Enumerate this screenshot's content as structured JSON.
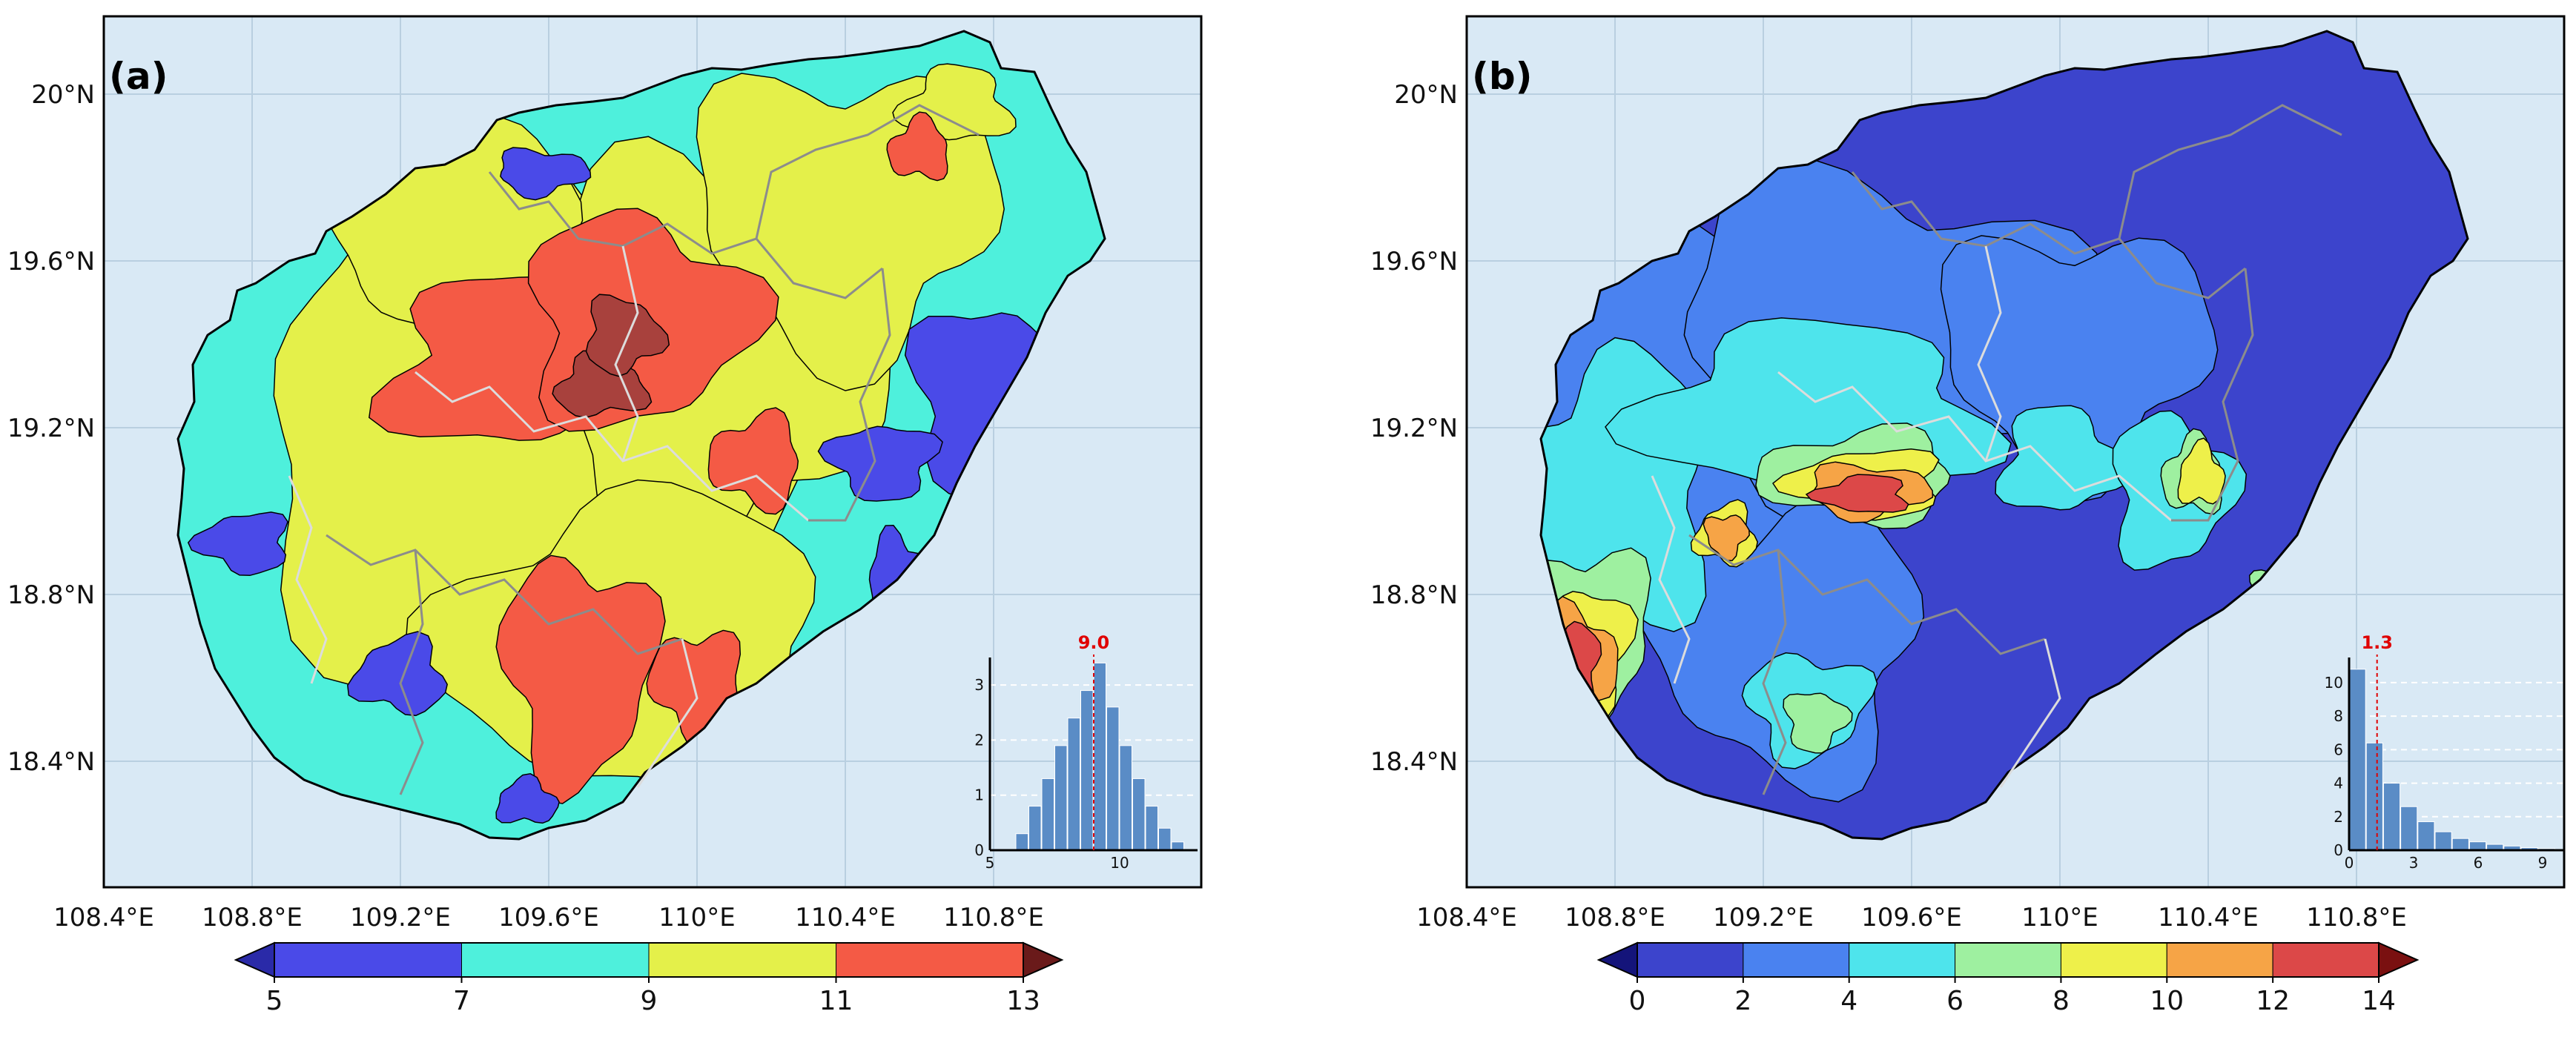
{
  "panels": [
    {
      "label": "(a)",
      "x_ticks": [
        "108.4°E",
        "108.8°E",
        "109.2°E",
        "109.6°E",
        "110°E",
        "110.4°E",
        "110.8°E"
      ],
      "y_ticks": [
        "20°N",
        "19.6°N",
        "19.2°N",
        "18.8°N",
        "18.4°N"
      ],
      "colorbar": {
        "ticks": [
          "5",
          "7",
          "9",
          "11",
          "13"
        ],
        "bins": [
          {
            "range": [
              5,
              7
            ],
            "color": "#4a4ae8"
          },
          {
            "range": [
              7,
              9
            ],
            "color": "#4ef0dc"
          },
          {
            "range": [
              9,
              11
            ],
            "color": "#e4f04a"
          },
          {
            "range": [
              11,
              13
            ],
            "color": "#f45a45"
          }
        ],
        "under_color": "#2a2aa8",
        "over_color": "#6a1a1a",
        "extend": "both"
      },
      "histogram": {
        "median": 9.0,
        "median_label": "9.0",
        "x_ticks": [
          "5",
          "10"
        ],
        "y_ticks": [
          "0",
          "1",
          "2",
          "3"
        ],
        "x_range": [
          5,
          13
        ],
        "y_range": [
          0,
          3.5
        ],
        "bin_width": 0.5,
        "bin_starts": [
          6,
          6.5,
          7,
          7.5,
          8,
          8.5,
          9,
          9.5,
          10,
          10.5,
          11,
          11.5,
          12
        ],
        "heights": [
          0.3,
          0.8,
          1.3,
          1.9,
          2.4,
          2.9,
          3.4,
          2.6,
          1.9,
          1.3,
          0.8,
          0.4,
          0.15
        ]
      }
    },
    {
      "label": "(b)",
      "x_ticks": [
        "108.4°E",
        "108.8°E",
        "109.2°E",
        "109.6°E",
        "110°E",
        "110.4°E",
        "110.8°E"
      ],
      "y_ticks": [
        "20°N",
        "19.6°N",
        "19.2°N",
        "18.8°N",
        "18.4°N"
      ],
      "colorbar": {
        "ticks": [
          "0",
          "2",
          "4",
          "6",
          "8",
          "10",
          "12",
          "14"
        ],
        "bins": [
          {
            "range": [
              0,
              2
            ],
            "color": "#3c44cc"
          },
          {
            "range": [
              2,
              4
            ],
            "color": "#4a82f0"
          },
          {
            "range": [
              4,
              6
            ],
            "color": "#4ee4ec"
          },
          {
            "range": [
              6,
              8
            ],
            "color": "#9ef0a0"
          },
          {
            "range": [
              8,
              10
            ],
            "color": "#eef04a"
          },
          {
            "range": [
              10,
              12
            ],
            "color": "#f6a446"
          },
          {
            "range": [
              12,
              14
            ],
            "color": "#dc4848"
          }
        ],
        "under_color": "#14147a",
        "over_color": "#7a1010",
        "extend": "both"
      },
      "histogram": {
        "median": 1.3,
        "median_label": "1.3",
        "x_ticks": [
          "0",
          "3",
          "6",
          "9"
        ],
        "y_ticks": [
          "0",
          "2",
          "4",
          "6",
          "8",
          "10"
        ],
        "x_range": [
          0,
          10
        ],
        "y_range": [
          0,
          11.5
        ],
        "bin_width": 0.8,
        "bin_starts": [
          0,
          0.8,
          1.6,
          2.4,
          3.2,
          4.0,
          4.8,
          5.6,
          6.4,
          7.2,
          8.0,
          8.8
        ],
        "heights": [
          10.8,
          6.4,
          4.0,
          2.6,
          1.7,
          1.1,
          0.7,
          0.5,
          0.35,
          0.25,
          0.15,
          0.1
        ]
      }
    }
  ]
}
